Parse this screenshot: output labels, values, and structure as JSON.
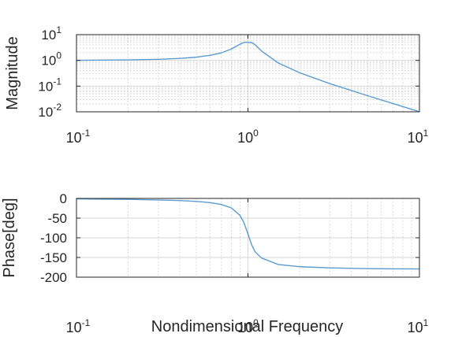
{
  "chart_data": [
    {
      "type": "line",
      "ylabel": "Magnitude",
      "xlabel": "",
      "xscale": "log",
      "yscale": "log",
      "xlim": [
        0.1,
        10
      ],
      "ylim": [
        0.01,
        10
      ],
      "grid": true,
      "xticks": [
        {
          "base": "10",
          "exp": "-1"
        },
        {
          "base": "10",
          "exp": "0"
        },
        {
          "base": "10",
          "exp": "1"
        }
      ],
      "yticks": [
        {
          "base": "10",
          "exp": "-2",
          "v": 0.01
        },
        {
          "base": "10",
          "exp": "-1",
          "v": 0.1
        },
        {
          "base": "10",
          "exp": "0",
          "v": 1
        },
        {
          "base": "10",
          "exp": "1",
          "v": 10
        }
      ],
      "series": [
        {
          "color": "#5b9bd0",
          "x": [
            0.1,
            0.2,
            0.3,
            0.4,
            0.5,
            0.6,
            0.7,
            0.8,
            0.9,
            0.95,
            1.0,
            1.05,
            1.1,
            1.2,
            1.5,
            2,
            3,
            5,
            7,
            10
          ],
          "y": [
            1.01,
            1.04,
            1.1,
            1.19,
            1.33,
            1.56,
            1.96,
            2.76,
            4.3,
            5.0,
            5.0,
            4.9,
            4.1,
            2.3,
            0.8,
            0.33,
            0.125,
            0.042,
            0.021,
            0.0101
          ]
        }
      ]
    },
    {
      "type": "line",
      "ylabel": "Phase[deg]",
      "xlabel": "Nondimensional Frequency",
      "xscale": "log",
      "xlim": [
        0.1,
        10
      ],
      "ylim": [
        -200,
        0
      ],
      "grid": true,
      "xticks": [
        {
          "base": "10",
          "exp": "-1"
        },
        {
          "base": "10",
          "exp": "0"
        },
        {
          "base": "10",
          "exp": "1"
        }
      ],
      "yticks": [
        "0",
        "-50",
        "-100",
        "-150",
        "-200"
      ],
      "series": [
        {
          "color": "#5b9bd0",
          "x": [
            0.1,
            0.2,
            0.3,
            0.4,
            0.5,
            0.6,
            0.7,
            0.8,
            0.9,
            0.95,
            1.0,
            1.05,
            1.1,
            1.2,
            1.5,
            2,
            3,
            5,
            7,
            10
          ],
          "y": [
            -1.2,
            -2.4,
            -3.8,
            -5.4,
            -7.6,
            -10.6,
            -15.4,
            -24.0,
            -43.5,
            -62.8,
            -90,
            -117.1,
            -135.5,
            -151.4,
            -167.8,
            -173.4,
            -176.4,
            -178.4,
            -178.8,
            -179.1
          ]
        }
      ]
    }
  ]
}
